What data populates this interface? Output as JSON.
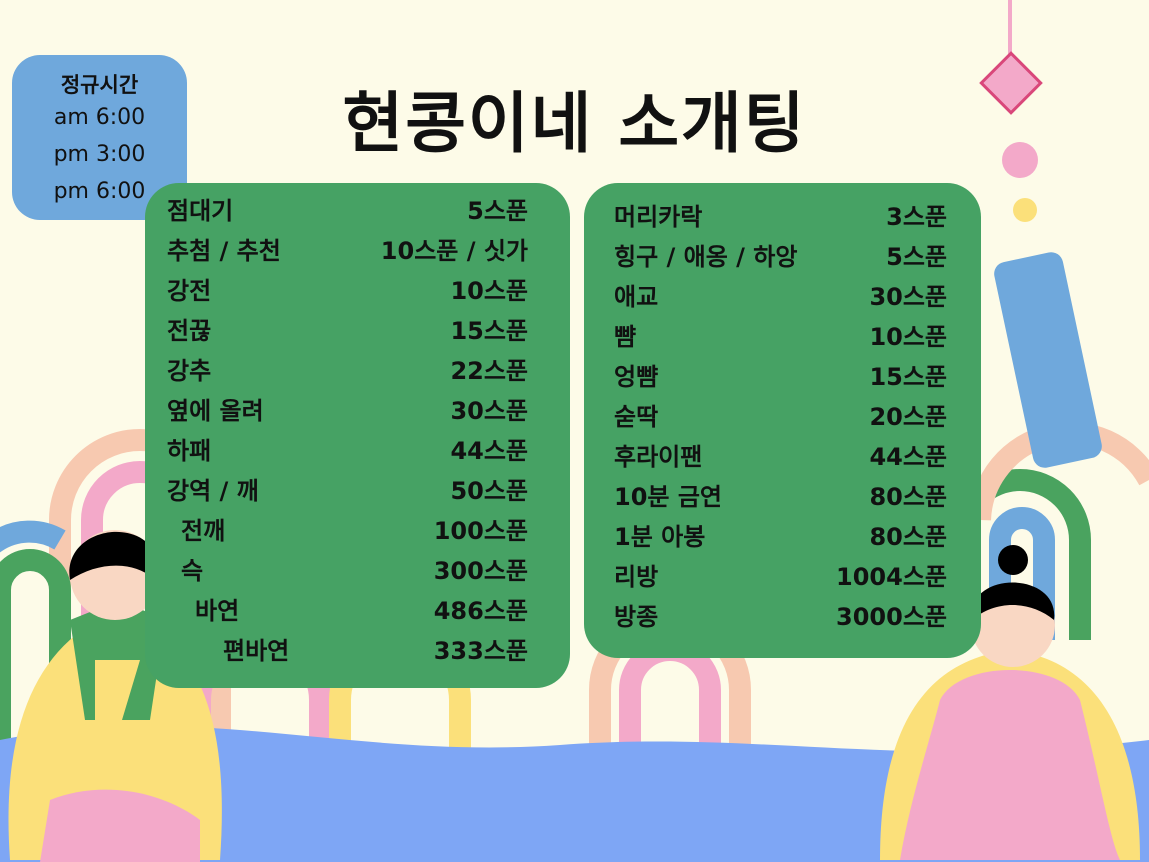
{
  "title": "현콩이네 소개팅",
  "hours": {
    "label": "정규시간",
    "times": [
      "am 6:00",
      "pm 3:00",
      "pm 6:00"
    ]
  },
  "left_menu": [
    {
      "name": "점대기",
      "price": "5스푼",
      "indent": 0
    },
    {
      "name": "추첨 / 추천",
      "price": "10스푼 / 싯가",
      "indent": 0
    },
    {
      "name": "강전",
      "price": "10스푼",
      "indent": 0
    },
    {
      "name": "전끊",
      "price": "15스푼",
      "indent": 0
    },
    {
      "name": "강추",
      "price": "22스푼",
      "indent": 0
    },
    {
      "name": "옆에 올려",
      "price": "30스푼",
      "indent": 0
    },
    {
      "name": "하패",
      "price": "44스푼",
      "indent": 0
    },
    {
      "name": "강역 / 깨",
      "price": "50스푼",
      "indent": 0
    },
    {
      "name": "전깨",
      "price": "100스푼",
      "indent": 1
    },
    {
      "name": "슥",
      "price": "300스푼",
      "indent": 1
    },
    {
      "name": "바연",
      "price": "486스푼",
      "indent": 2
    },
    {
      "name": "편바연",
      "price": "333스푼",
      "indent": 4
    }
  ],
  "right_menu": [
    {
      "name": "머리카락",
      "price": "3스푼"
    },
    {
      "name": "힝구 / 애옹 / 하앙",
      "price": "5스푼"
    },
    {
      "name": "애교",
      "price": "30스푼"
    },
    {
      "name": "뺨",
      "price": "10스푼"
    },
    {
      "name": "엉뺨",
      "price": "15스푼"
    },
    {
      "name": "숟딱",
      "price": "20스푼"
    },
    {
      "name": "후라이팬",
      "price": "44스푼"
    },
    {
      "name": "10분 금연",
      "price": "80스푼"
    },
    {
      "name": "1분 아봉",
      "price": "80스푼"
    },
    {
      "name": "리방",
      "price": "1004스푼"
    },
    {
      "name": "방종",
      "price": "3000스푼"
    }
  ],
  "colors": {
    "background": "#fdfbe8",
    "panel": "#46a264",
    "hours_box": "#6fa8dc",
    "wave": "#7ea6f5"
  }
}
